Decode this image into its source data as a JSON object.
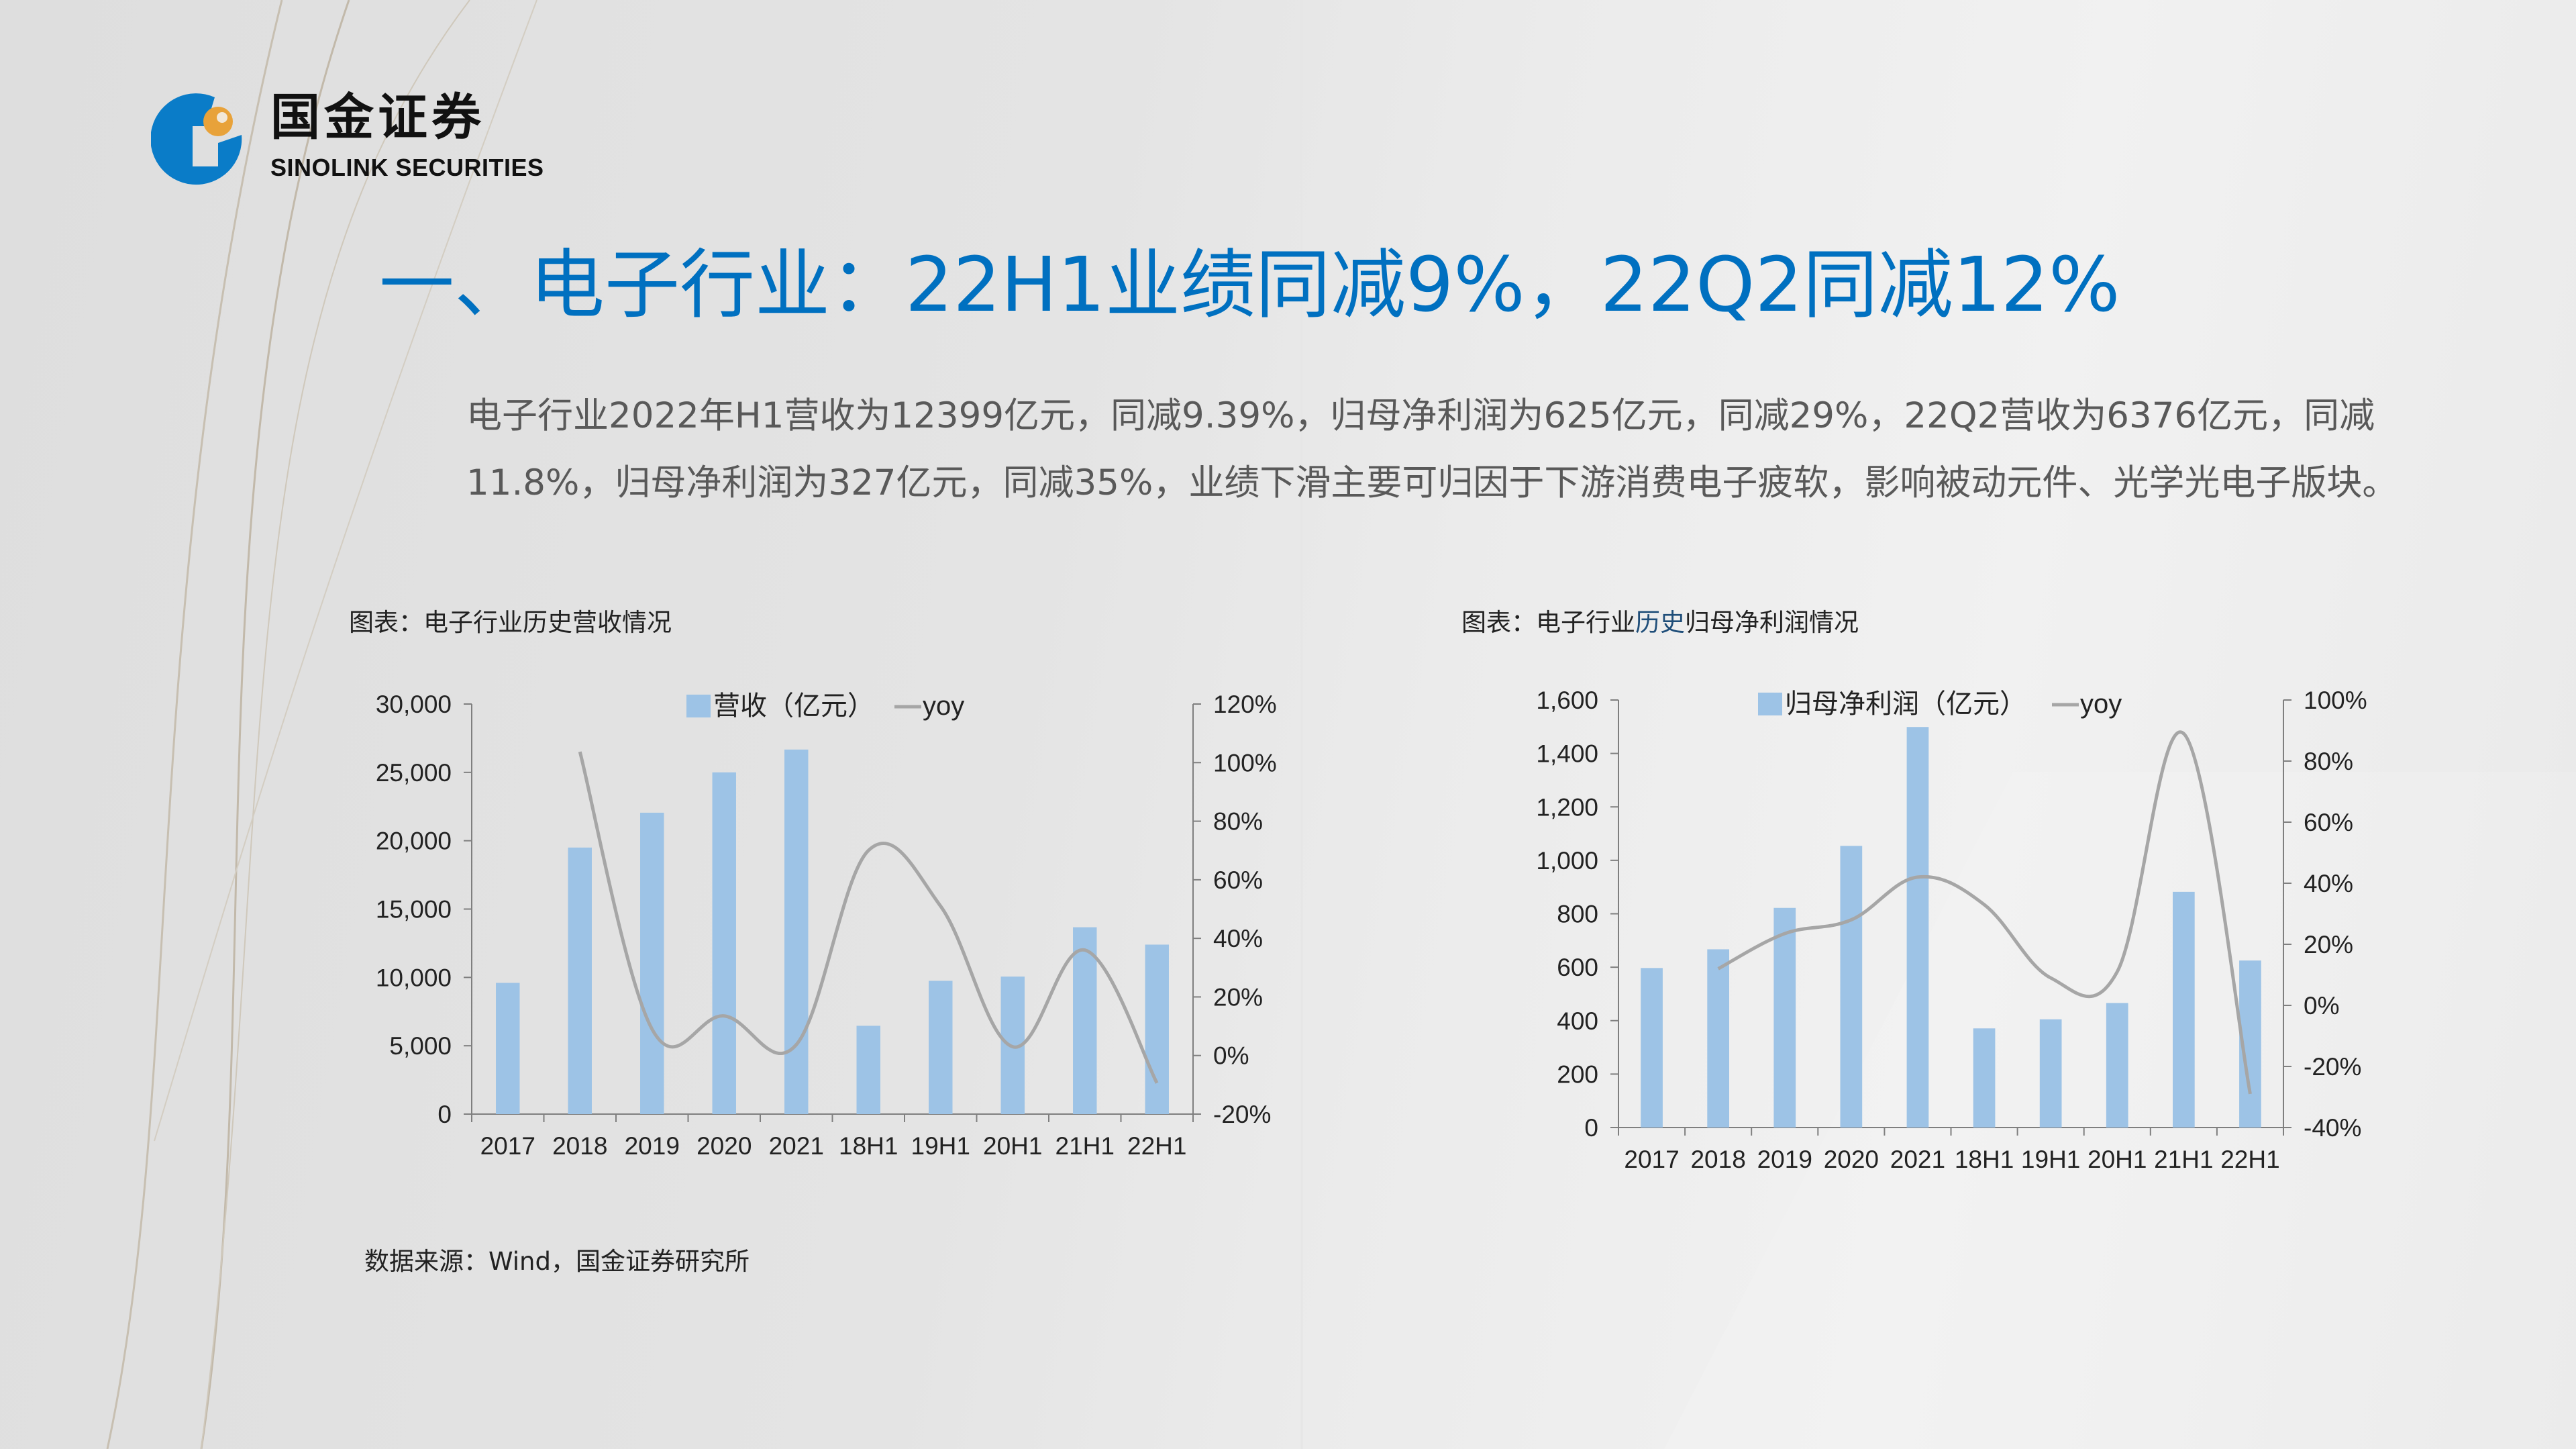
{
  "logo": {
    "name_cn": "国金证券",
    "name_en": "SINOLINK SECURITIES",
    "colors": {
      "blue": "#0A7CC8",
      "orange": "#E8A23A"
    }
  },
  "title": "一、电子行业：22H1业绩同减9%，22Q2同减12%",
  "paragraph": "电子行业2022年H1营收为12399亿元，同减9.39%，归母净利润为625亿元，同减29%，22Q2营收为6376亿元，同减11.8%，归母净利润为327亿元，同减35%，业绩下滑主要可归因于下游消费电子疲软，影响被动元件、光学光电子版块。",
  "source": "数据来源：Wind，国金证券研究所",
  "colors": {
    "title": "#0070C0",
    "bar": "#9DC3E6",
    "line": "#A6A6A6",
    "text": "#595959"
  },
  "chart_data": [
    {
      "type": "bar",
      "caption_prefix": "图表：电子行业历史营收情况",
      "title": "电子行业历史营收情况",
      "categories": [
        "2017",
        "2018",
        "2019",
        "2020",
        "2021",
        "18H1",
        "19H1",
        "20H1",
        "21H1",
        "22H1"
      ],
      "series": [
        {
          "name": "营收（亿元）",
          "type": "bar",
          "axis": "left",
          "values": [
            9600,
            19500,
            22050,
            25000,
            26670,
            6460,
            9750,
            10060,
            13670,
            12399
          ]
        },
        {
          "name": "yoy",
          "type": "line",
          "axis": "right",
          "unit": "%",
          "values": [
            null,
            103.7,
            9,
            13.5,
            3.7,
            70,
            51,
            3,
            36,
            -9.4
          ]
        }
      ],
      "legend": [
        "营收（亿元）",
        "yoy"
      ],
      "legend_position": "top",
      "ylim": [
        0,
        30000
      ],
      "yticks": [
        "0",
        "5,000",
        "10,000",
        "15,000",
        "20,000",
        "25,000",
        "30,000"
      ],
      "y2lim": [
        -20,
        120
      ],
      "y2ticks": [
        "-20%",
        "0%",
        "20%",
        "40%",
        "60%",
        "80%",
        "100%",
        "120%"
      ],
      "grid": false
    },
    {
      "type": "bar",
      "caption_prefix": "图表：电子行业",
      "caption_highlight": "历史",
      "caption_suffix": "归母净利润情况",
      "title": "电子行业历史归母净利润情况",
      "categories": [
        "2017",
        "2018",
        "2019",
        "2020",
        "2021",
        "18H1",
        "19H1",
        "20H1",
        "21H1",
        "22H1"
      ],
      "series": [
        {
          "name": "归母净利润（亿元）",
          "type": "bar",
          "axis": "left",
          "values": [
            597,
            667,
            822,
            1054,
            1499,
            371,
            405,
            466,
            882,
            625
          ]
        },
        {
          "name": "yoy",
          "type": "line",
          "axis": "right",
          "unit": "%",
          "values": [
            null,
            12,
            23.5,
            28,
            42,
            33,
            9,
            11,
            89,
            -29
          ]
        }
      ],
      "legend": [
        "归母净利润（亿元）",
        "yoy"
      ],
      "legend_position": "top",
      "ylim": [
        0,
        1600
      ],
      "yticks": [
        "0",
        "200",
        "400",
        "600",
        "800",
        "1,000",
        "1,200",
        "1,400",
        "1,600"
      ],
      "y2lim": [
        -40,
        100
      ],
      "y2ticks": [
        "-40%",
        "-20%",
        "0%",
        "20%",
        "40%",
        "60%",
        "80%",
        "100%"
      ],
      "grid": false
    }
  ]
}
